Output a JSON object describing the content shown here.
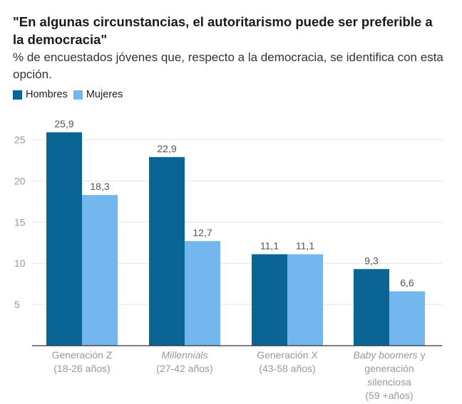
{
  "chart_data": {
    "type": "bar",
    "title": "\"En algunas circunstancias, el autoritarismo puede ser preferible a la democracia\"",
    "subtitle": "% de encuestados jóvenes que, respecto a la democracia, se identifica con esta opción.",
    "xlabel": "",
    "ylabel": "",
    "ylim": [
      0,
      28
    ],
    "yticks": [
      5,
      10,
      15,
      20,
      25
    ],
    "grid": true,
    "legend_position": "top-left",
    "categories": [
      {
        "lines": [
          [
            {
              "text": "Generación Z",
              "italic": false
            }
          ],
          [
            {
              "text": "(18-26 años)",
              "italic": false
            }
          ]
        ]
      },
      {
        "lines": [
          [
            {
              "text": "Millennials",
              "italic": true
            }
          ],
          [
            {
              "text": "(27-42 años)",
              "italic": false
            }
          ]
        ]
      },
      {
        "lines": [
          [
            {
              "text": "Generación X",
              "italic": false
            }
          ],
          [
            {
              "text": "(43-58 años)",
              "italic": false
            }
          ]
        ]
      },
      {
        "lines": [
          [
            {
              "text": "Baby boomers",
              "italic": true
            },
            {
              "text": " y",
              "italic": false
            }
          ],
          [
            {
              "text": "generación",
              "italic": false
            }
          ],
          [
            {
              "text": "silenciosa",
              "italic": false
            }
          ],
          [
            {
              "text": "(59 +años)",
              "italic": false
            }
          ]
        ]
      }
    ],
    "series": [
      {
        "name": "Hombres",
        "color": "#0a6494",
        "values": [
          25.9,
          22.9,
          11.1,
          9.3
        ],
        "labels": [
          "25,9",
          "22,9",
          "11,1",
          "9,3"
        ]
      },
      {
        "name": "Mujeres",
        "color": "#74b7ef",
        "values": [
          18.3,
          12.7,
          11.1,
          6.6
        ],
        "labels": [
          "18,3",
          "12,7",
          "11,1",
          "6,6"
        ]
      }
    ]
  }
}
